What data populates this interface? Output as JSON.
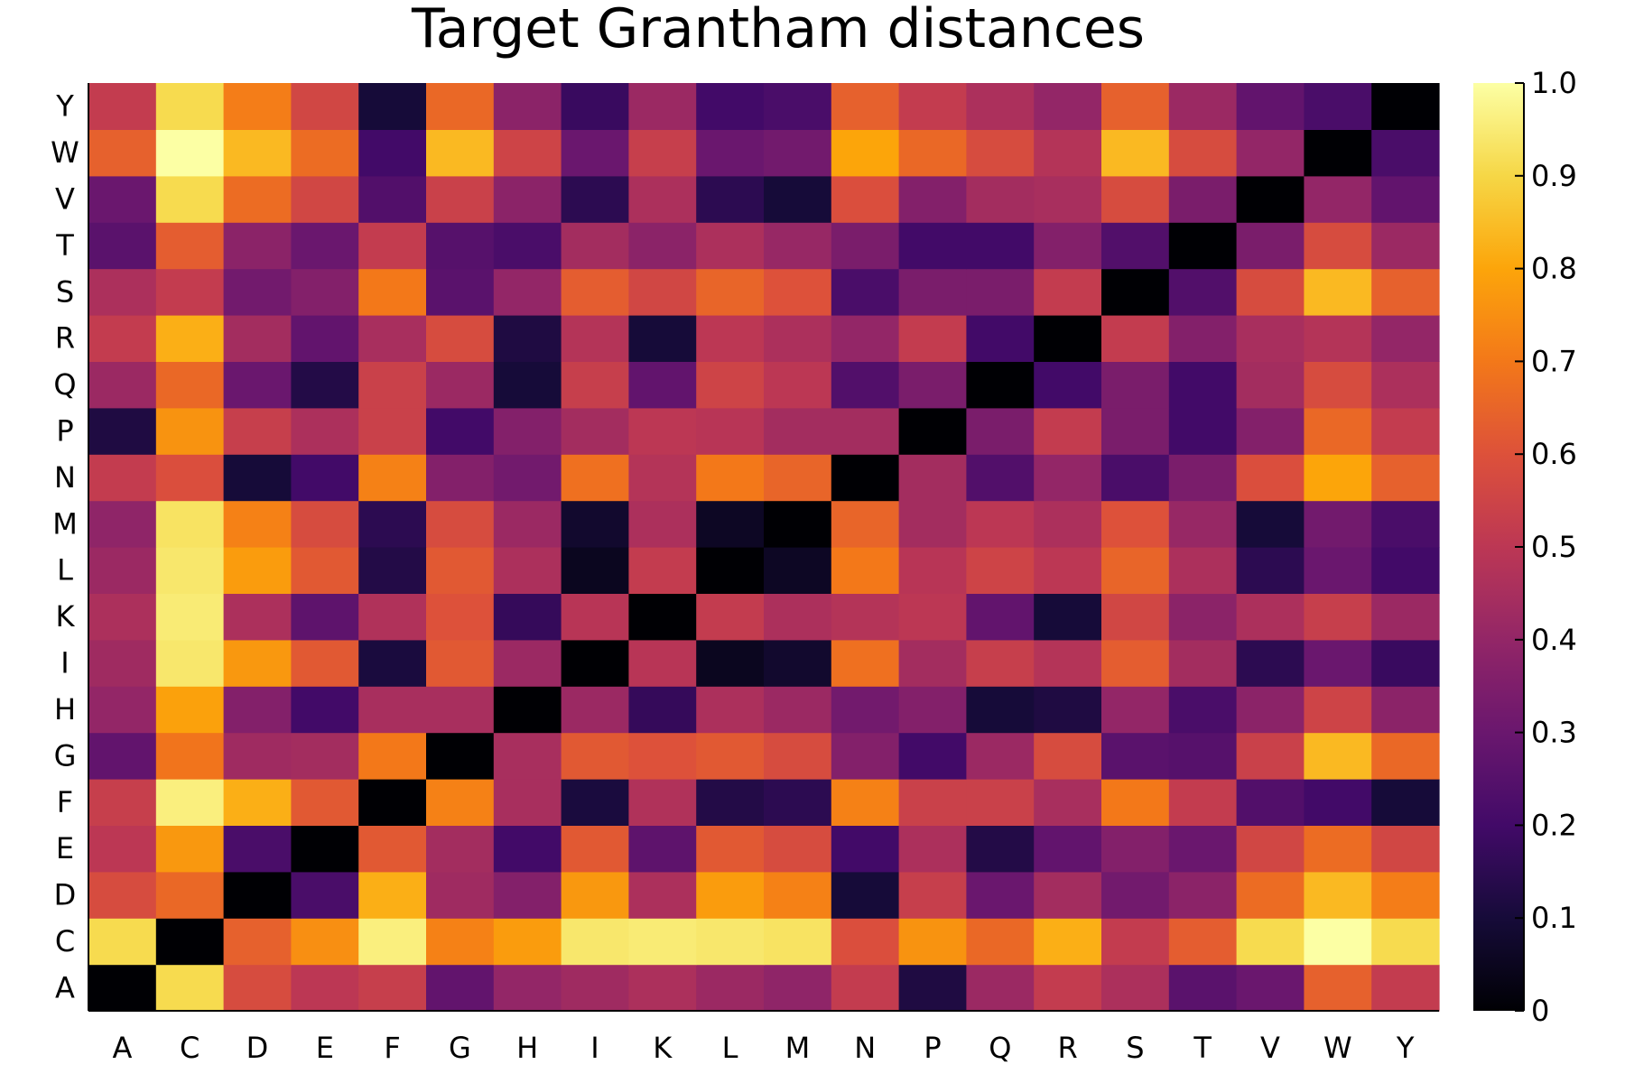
{
  "chart_data": {
    "type": "heatmap",
    "title": "Target Grantham distances",
    "xlabel": "",
    "ylabel": "",
    "x_categories": [
      "A",
      "C",
      "D",
      "E",
      "F",
      "G",
      "H",
      "I",
      "K",
      "L",
      "M",
      "N",
      "P",
      "Q",
      "R",
      "S",
      "T",
      "V",
      "W",
      "Y"
    ],
    "y_categories": [
      "A",
      "C",
      "D",
      "E",
      "F",
      "G",
      "H",
      "I",
      "K",
      "L",
      "M",
      "N",
      "P",
      "Q",
      "R",
      "S",
      "T",
      "V",
      "W",
      "Y"
    ],
    "values": [
      [
        0.0,
        0.91,
        0.58,
        0.5,
        0.53,
        0.28,
        0.4,
        0.43,
        0.46,
        0.42,
        0.39,
        0.52,
        0.12,
        0.42,
        0.52,
        0.46,
        0.26,
        0.3,
        0.64,
        0.52
      ],
      [
        0.91,
        0.0,
        0.64,
        0.75,
        0.96,
        0.72,
        0.78,
        0.94,
        0.95,
        0.94,
        0.93,
        0.59,
        0.76,
        0.66,
        0.82,
        0.52,
        0.63,
        0.91,
        1.0,
        0.91
      ],
      [
        0.58,
        0.66,
        0.0,
        0.22,
        0.82,
        0.43,
        0.36,
        0.77,
        0.46,
        0.78,
        0.72,
        0.1,
        0.53,
        0.3,
        0.44,
        0.32,
        0.38,
        0.67,
        0.84,
        0.71
      ],
      [
        0.5,
        0.77,
        0.22,
        0.0,
        0.62,
        0.44,
        0.2,
        0.62,
        0.27,
        0.62,
        0.58,
        0.2,
        0.46,
        0.13,
        0.28,
        0.36,
        0.3,
        0.56,
        0.67,
        0.56
      ],
      [
        0.53,
        0.96,
        0.82,
        0.62,
        0.0,
        0.72,
        0.45,
        0.11,
        0.47,
        0.13,
        0.15,
        0.72,
        0.54,
        0.54,
        0.45,
        0.7,
        0.52,
        0.24,
        0.2,
        0.1
      ],
      [
        0.28,
        0.69,
        0.43,
        0.44,
        0.7,
        0.0,
        0.45,
        0.62,
        0.6,
        0.62,
        0.58,
        0.36,
        0.2,
        0.42,
        0.58,
        0.26,
        0.25,
        0.54,
        0.84,
        0.66
      ],
      [
        0.4,
        0.79,
        0.36,
        0.2,
        0.45,
        0.45,
        0.0,
        0.42,
        0.17,
        0.46,
        0.42,
        0.32,
        0.36,
        0.1,
        0.12,
        0.4,
        0.22,
        0.38,
        0.55,
        0.38
      ],
      [
        0.43,
        0.94,
        0.77,
        0.62,
        0.11,
        0.62,
        0.42,
        0.0,
        0.49,
        0.05,
        0.08,
        0.68,
        0.44,
        0.53,
        0.48,
        0.63,
        0.44,
        0.15,
        0.3,
        0.18
      ],
      [
        0.46,
        0.95,
        0.46,
        0.27,
        0.47,
        0.6,
        0.17,
        0.49,
        0.0,
        0.52,
        0.46,
        0.48,
        0.5,
        0.28,
        0.1,
        0.56,
        0.38,
        0.46,
        0.53,
        0.42
      ],
      [
        0.42,
        0.94,
        0.78,
        0.62,
        0.13,
        0.62,
        0.46,
        0.05,
        0.52,
        0.0,
        0.06,
        0.7,
        0.49,
        0.55,
        0.5,
        0.65,
        0.46,
        0.15,
        0.3,
        0.2
      ],
      [
        0.39,
        0.93,
        0.72,
        0.58,
        0.15,
        0.58,
        0.42,
        0.08,
        0.46,
        0.06,
        0.0,
        0.65,
        0.44,
        0.5,
        0.46,
        0.6,
        0.41,
        0.1,
        0.32,
        0.22
      ],
      [
        0.52,
        0.59,
        0.1,
        0.2,
        0.72,
        0.36,
        0.32,
        0.68,
        0.48,
        0.7,
        0.65,
        0.0,
        0.44,
        0.24,
        0.4,
        0.22,
        0.34,
        0.59,
        0.8,
        0.64
      ],
      [
        0.12,
        0.76,
        0.53,
        0.46,
        0.54,
        0.2,
        0.36,
        0.44,
        0.5,
        0.49,
        0.44,
        0.44,
        0.0,
        0.34,
        0.52,
        0.34,
        0.2,
        0.36,
        0.66,
        0.52
      ],
      [
        0.42,
        0.66,
        0.3,
        0.13,
        0.54,
        0.42,
        0.1,
        0.53,
        0.28,
        0.55,
        0.5,
        0.24,
        0.34,
        0.0,
        0.2,
        0.34,
        0.2,
        0.44,
        0.58,
        0.46
      ],
      [
        0.52,
        0.82,
        0.44,
        0.28,
        0.45,
        0.58,
        0.12,
        0.48,
        0.1,
        0.5,
        0.46,
        0.4,
        0.52,
        0.2,
        0.0,
        0.52,
        0.36,
        0.45,
        0.48,
        0.4
      ],
      [
        0.46,
        0.52,
        0.32,
        0.36,
        0.7,
        0.26,
        0.4,
        0.63,
        0.56,
        0.65,
        0.6,
        0.22,
        0.34,
        0.34,
        0.52,
        0.0,
        0.24,
        0.58,
        0.84,
        0.64
      ],
      [
        0.26,
        0.63,
        0.38,
        0.3,
        0.52,
        0.25,
        0.22,
        0.44,
        0.38,
        0.46,
        0.41,
        0.34,
        0.2,
        0.2,
        0.36,
        0.24,
        0.0,
        0.34,
        0.58,
        0.42
      ],
      [
        0.3,
        0.91,
        0.67,
        0.56,
        0.24,
        0.54,
        0.38,
        0.15,
        0.46,
        0.15,
        0.1,
        0.59,
        0.36,
        0.44,
        0.45,
        0.58,
        0.34,
        0.0,
        0.4,
        0.28
      ],
      [
        0.64,
        1.0,
        0.84,
        0.67,
        0.2,
        0.84,
        0.55,
        0.3,
        0.53,
        0.3,
        0.32,
        0.8,
        0.66,
        0.58,
        0.48,
        0.84,
        0.58,
        0.4,
        0.0,
        0.22
      ],
      [
        0.52,
        0.91,
        0.71,
        0.56,
        0.1,
        0.66,
        0.38,
        0.18,
        0.42,
        0.2,
        0.22,
        0.64,
        0.52,
        0.46,
        0.4,
        0.64,
        0.42,
        0.28,
        0.22,
        0.0
      ]
    ],
    "colorbar": {
      "range": [
        0,
        1
      ],
      "ticks": [
        "0",
        "0.1",
        "0.2",
        "0.3",
        "0.4",
        "0.5",
        "0.6",
        "0.7",
        "0.8",
        "0.9",
        "1.0"
      ],
      "colormap": "inferno"
    },
    "grid": false,
    "legend": "colorbar-right"
  }
}
